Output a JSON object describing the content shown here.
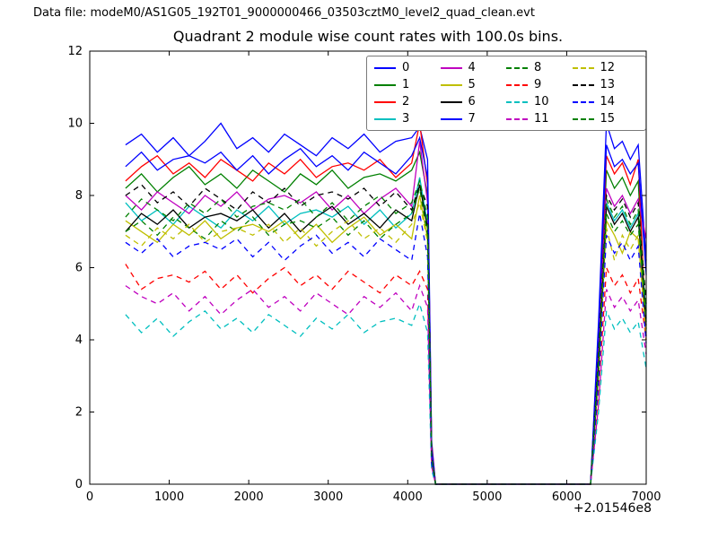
{
  "header": {
    "data_file_label": "Data file: modeM0/AS1G05_192T01_9000000466_03503cztM0_level2_quad_clean.evt"
  },
  "chart_data": {
    "type": "line",
    "title": "Quadrant 2 module wise count rates with 100.0s bins.",
    "xlabel": "",
    "ylabel": "",
    "xlim": [
      0,
      7000
    ],
    "ylim": [
      0,
      12
    ],
    "xticks": [
      0,
      1000,
      2000,
      3000,
      4000,
      5000,
      6000,
      7000
    ],
    "yticks": [
      0,
      2,
      4,
      6,
      8,
      10,
      12
    ],
    "x_offset_label": "+2.01546e8",
    "grid": false,
    "legend_position": "upper center",
    "x": [
      450,
      650,
      850,
      1050,
      1250,
      1450,
      1650,
      1850,
      2050,
      2250,
      2450,
      2650,
      2850,
      3050,
      3250,
      3450,
      3650,
      3850,
      4050,
      4150,
      4250,
      4300,
      4350,
      6300,
      6400,
      6500,
      6600,
      6700,
      6800,
      6900,
      7000
    ],
    "series": [
      {
        "name": "0",
        "color": "#0000ff",
        "dash": "solid",
        "values": [
          9.4,
          9.7,
          9.2,
          9.6,
          9.1,
          9.5,
          10.0,
          9.3,
          9.6,
          9.2,
          9.7,
          9.4,
          9.1,
          9.6,
          9.3,
          9.7,
          9.2,
          9.5,
          9.6,
          9.9,
          9.0,
          1.2,
          0,
          0,
          4.5,
          10.0,
          9.3,
          9.5,
          9.0,
          9.4,
          6.2
        ]
      },
      {
        "name": "1",
        "color": "#008000",
        "dash": "solid",
        "values": [
          8.2,
          8.6,
          8.1,
          8.5,
          8.8,
          8.3,
          8.6,
          8.2,
          8.7,
          8.4,
          8.1,
          8.6,
          8.3,
          8.7,
          8.2,
          8.5,
          8.6,
          8.4,
          8.7,
          9.2,
          8.0,
          1.0,
          0,
          0,
          3.8,
          8.7,
          8.2,
          8.5,
          8.0,
          8.4,
          4.3
        ]
      },
      {
        "name": "2",
        "color": "#ff0000",
        "dash": "solid",
        "values": [
          8.4,
          8.8,
          9.1,
          8.6,
          8.9,
          8.5,
          9.0,
          8.7,
          8.4,
          8.9,
          8.6,
          9.0,
          8.5,
          8.8,
          8.9,
          8.7,
          9.0,
          8.5,
          8.9,
          10.0,
          8.3,
          1.1,
          0,
          0,
          4.0,
          9.1,
          8.6,
          8.9,
          8.3,
          9.0,
          4.1
        ]
      },
      {
        "name": "3",
        "color": "#00bfbf",
        "dash": "solid",
        "values": [
          7.8,
          7.3,
          7.6,
          7.2,
          7.7,
          7.4,
          7.1,
          7.6,
          7.3,
          7.7,
          7.2,
          7.5,
          7.6,
          7.4,
          7.7,
          7.2,
          7.6,
          7.1,
          7.5,
          8.5,
          7.2,
          0.8,
          0,
          0,
          3.3,
          7.8,
          7.3,
          7.6,
          7.1,
          7.5,
          4.6
        ]
      },
      {
        "name": "4",
        "color": "#bf00bf",
        "dash": "solid",
        "values": [
          8.0,
          7.6,
          8.1,
          7.8,
          7.5,
          8.0,
          7.7,
          8.1,
          7.6,
          7.9,
          8.0,
          7.8,
          8.1,
          7.6,
          8.0,
          7.5,
          7.9,
          8.2,
          7.7,
          9.5,
          7.8,
          0.9,
          0,
          0,
          3.5,
          8.2,
          7.7,
          8.0,
          7.5,
          7.9,
          6.8
        ]
      },
      {
        "name": "5",
        "color": "#bfbf00",
        "dash": "solid",
        "values": [
          7.3,
          7.0,
          6.7,
          7.2,
          6.9,
          7.3,
          6.8,
          7.1,
          7.2,
          7.0,
          7.3,
          6.8,
          7.2,
          6.7,
          7.1,
          7.4,
          6.9,
          7.2,
          6.8,
          8.0,
          6.8,
          0.7,
          0,
          0,
          3.0,
          7.3,
          6.9,
          6.4,
          7.0,
          6.8,
          4.2
        ]
      },
      {
        "name": "6",
        "color": "#000000",
        "dash": "solid",
        "values": [
          7.0,
          7.5,
          7.2,
          7.6,
          7.1,
          7.4,
          7.5,
          7.3,
          7.6,
          7.1,
          7.5,
          7.0,
          7.4,
          7.7,
          7.2,
          7.5,
          7.1,
          7.6,
          7.3,
          8.3,
          7.1,
          0.8,
          0,
          0,
          3.2,
          7.7,
          7.2,
          7.5,
          7.0,
          7.4,
          4.4
        ]
      },
      {
        "name": "7",
        "color": "#0000ff",
        "dash": "solid",
        "values": [
          8.8,
          9.2,
          8.7,
          9.0,
          9.1,
          8.9,
          9.2,
          8.7,
          9.1,
          8.6,
          9.0,
          9.3,
          8.8,
          9.1,
          8.7,
          9.2,
          8.9,
          8.6,
          9.1,
          9.6,
          8.5,
          1.0,
          0,
          0,
          4.2,
          9.4,
          8.8,
          9.0,
          8.6,
          8.9,
          5.8
        ]
      },
      {
        "name": "8",
        "color": "#008000",
        "dash": "dashed",
        "values": [
          7.0,
          7.3,
          6.9,
          7.4,
          7.1,
          6.8,
          7.3,
          7.0,
          7.4,
          6.9,
          7.2,
          7.3,
          7.1,
          7.4,
          6.9,
          7.3,
          6.8,
          7.2,
          7.5,
          8.2,
          6.9,
          0.7,
          0,
          0,
          3.1,
          7.5,
          7.0,
          7.3,
          6.9,
          7.2,
          4.5
        ]
      },
      {
        "name": "9",
        "color": "#ff0000",
        "dash": "dashed",
        "values": [
          6.1,
          5.4,
          5.7,
          5.8,
          5.6,
          5.9,
          5.4,
          5.8,
          5.3,
          5.7,
          6.0,
          5.5,
          5.8,
          5.4,
          5.9,
          5.6,
          5.3,
          5.8,
          5.5,
          5.9,
          5.4,
          0.5,
          0,
          0,
          2.5,
          6.0,
          5.5,
          5.8,
          5.3,
          5.7,
          4.0
        ]
      },
      {
        "name": "10",
        "color": "#00bfbf",
        "dash": "dashed",
        "values": [
          4.7,
          4.2,
          4.6,
          4.1,
          4.5,
          4.8,
          4.3,
          4.6,
          4.2,
          4.7,
          4.4,
          4.1,
          4.6,
          4.3,
          4.7,
          4.2,
          4.5,
          4.6,
          4.4,
          5.0,
          4.2,
          0.4,
          0,
          0,
          2.0,
          4.8,
          4.3,
          4.6,
          4.2,
          4.5,
          3.2
        ]
      },
      {
        "name": "11",
        "color": "#bf00bf",
        "dash": "dashed",
        "values": [
          5.5,
          5.2,
          5.0,
          5.3,
          4.8,
          5.2,
          4.7,
          5.1,
          5.4,
          4.9,
          5.2,
          4.8,
          5.3,
          5.0,
          4.7,
          5.2,
          4.9,
          5.3,
          4.8,
          5.5,
          4.9,
          0.5,
          0,
          0,
          2.2,
          5.4,
          4.9,
          5.2,
          4.8,
          5.1,
          3.6
        ]
      },
      {
        "name": "12",
        "color": "#bfbf00",
        "dash": "dashed",
        "values": [
          6.9,
          6.6,
          7.1,
          6.8,
          7.2,
          6.7,
          7.0,
          7.1,
          6.9,
          7.2,
          6.7,
          7.1,
          6.6,
          7.0,
          7.3,
          6.8,
          7.1,
          6.7,
          7.2,
          7.8,
          6.7,
          0.7,
          0,
          0,
          2.9,
          7.1,
          6.2,
          6.9,
          6.5,
          6.9,
          4.0
        ]
      },
      {
        "name": "13",
        "color": "#000000",
        "dash": "dashed",
        "values": [
          8.0,
          8.3,
          7.8,
          8.1,
          7.7,
          8.2,
          7.9,
          7.6,
          8.1,
          7.8,
          8.2,
          7.7,
          8.0,
          8.1,
          7.9,
          8.2,
          7.7,
          8.1,
          7.6,
          8.3,
          7.7,
          0.8,
          0,
          0,
          3.6,
          8.0,
          7.6,
          7.9,
          7.4,
          7.8,
          5.0
        ]
      },
      {
        "name": "14",
        "color": "#0000ff",
        "dash": "dashed",
        "values": [
          6.7,
          6.4,
          6.8,
          6.3,
          6.6,
          6.7,
          6.5,
          6.8,
          6.3,
          6.7,
          6.2,
          6.6,
          6.9,
          6.4,
          6.7,
          6.3,
          6.8,
          6.5,
          6.2,
          7.5,
          6.3,
          0.6,
          0,
          0,
          2.8,
          6.9,
          6.4,
          6.7,
          6.2,
          6.6,
          3.9
        ]
      },
      {
        "name": "15",
        "color": "#008000",
        "dash": "dashed",
        "values": [
          7.4,
          7.9,
          7.6,
          7.3,
          7.8,
          7.5,
          7.9,
          7.4,
          7.7,
          7.8,
          7.6,
          7.9,
          7.4,
          7.8,
          7.3,
          7.7,
          8.0,
          7.5,
          7.8,
          8.4,
          7.4,
          0.8,
          0,
          0,
          3.4,
          7.9,
          7.4,
          7.7,
          7.2,
          7.6,
          4.8
        ]
      }
    ]
  }
}
